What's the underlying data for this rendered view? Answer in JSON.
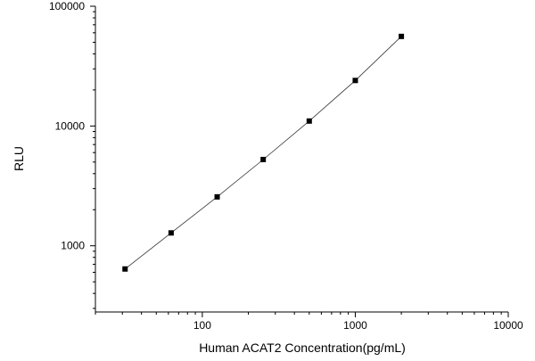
{
  "chart_data": {
    "type": "scatter",
    "xlabel": "Human ACAT2 Concentration(pg/mL)",
    "ylabel": "RLU",
    "x_scale": "log",
    "y_scale": "log",
    "xlim": [
      20,
      10000
    ],
    "ylim": [
      280,
      100000
    ],
    "x_tick_labels": [
      "100",
      "1000",
      "10000"
    ],
    "y_tick_labels": [
      "1000",
      "10000",
      "100000"
    ],
    "grid": false,
    "legend": "none",
    "series": [
      {
        "x": [
          31.25,
          62.5,
          125,
          250,
          500,
          1000,
          2000
        ],
        "y": [
          640,
          1280,
          2560,
          5250,
          11000,
          24000,
          56000
        ]
      }
    ],
    "colors": {
      "marker": "#000000",
      "fit_line": "#333333",
      "axis": "#000000"
    }
  }
}
